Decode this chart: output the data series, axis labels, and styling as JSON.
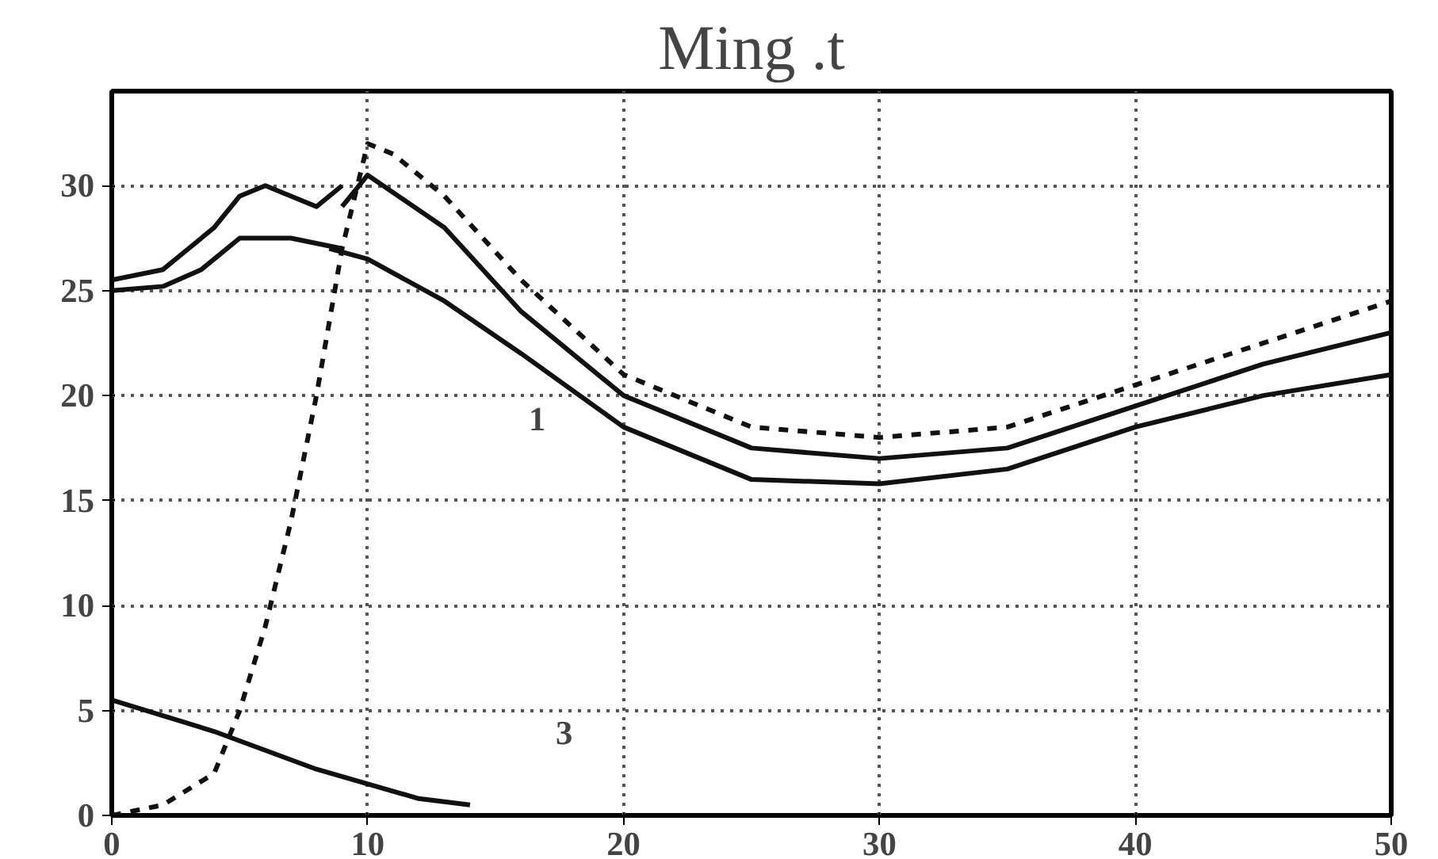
{
  "chart_data": {
    "type": "line",
    "title": "Ming .t",
    "xlim": [
      0,
      50
    ],
    "ylim": [
      0,
      34.5
    ],
    "xticks": [
      0,
      10,
      20,
      30,
      40,
      50
    ],
    "yticks": [
      0,
      5,
      10,
      15,
      20,
      25,
      30
    ],
    "grid": true,
    "line_style": "solid",
    "marker": "none",
    "series": [
      {
        "color": "#111111",
        "line_style": "dashed",
        "x": [
          0,
          2,
          4,
          5,
          6,
          7,
          8,
          9,
          10,
          11,
          13,
          16,
          20,
          25,
          30,
          35,
          40,
          45,
          50
        ],
        "values": [
          0,
          0.5,
          2,
          5,
          9,
          14,
          20,
          27,
          32,
          31.5,
          29.5,
          25.5,
          21,
          18.5,
          18,
          18.5,
          20.5,
          22.5,
          24.5
        ]
      },
      {
        "color": "#111111",
        "x": [
          9,
          10,
          13,
          16,
          20,
          25,
          30,
          35,
          40,
          45,
          50
        ],
        "values": [
          29,
          30.5,
          28,
          24,
          20,
          17.5,
          17,
          17.5,
          19.5,
          21.5,
          23
        ]
      },
      {
        "color": "#111111",
        "x": [
          8.5,
          10,
          13,
          16,
          20,
          25,
          30,
          35,
          40,
          45,
          50
        ],
        "values": [
          27,
          26.5,
          24.5,
          22,
          18.5,
          16,
          15.8,
          16.5,
          18.5,
          20,
          21
        ]
      },
      {
        "color": "#111111",
        "x": [
          0,
          2,
          3,
          4,
          5,
          6,
          7,
          8,
          9
        ],
        "values": [
          25.5,
          26,
          27,
          28,
          29.5,
          30,
          29.5,
          29,
          30
        ]
      },
      {
        "color": "#111111",
        "x": [
          0,
          2,
          3.5,
          5,
          7,
          9
        ],
        "values": [
          25,
          25.2,
          26,
          27.5,
          27.5,
          27
        ]
      },
      {
        "color": "#111111",
        "x": [
          0,
          4,
          8,
          12,
          14
        ],
        "values": [
          5.5,
          4,
          2.2,
          0.8,
          0.5
        ]
      }
    ],
    "annotations": [
      "1",
      "3"
    ]
  }
}
